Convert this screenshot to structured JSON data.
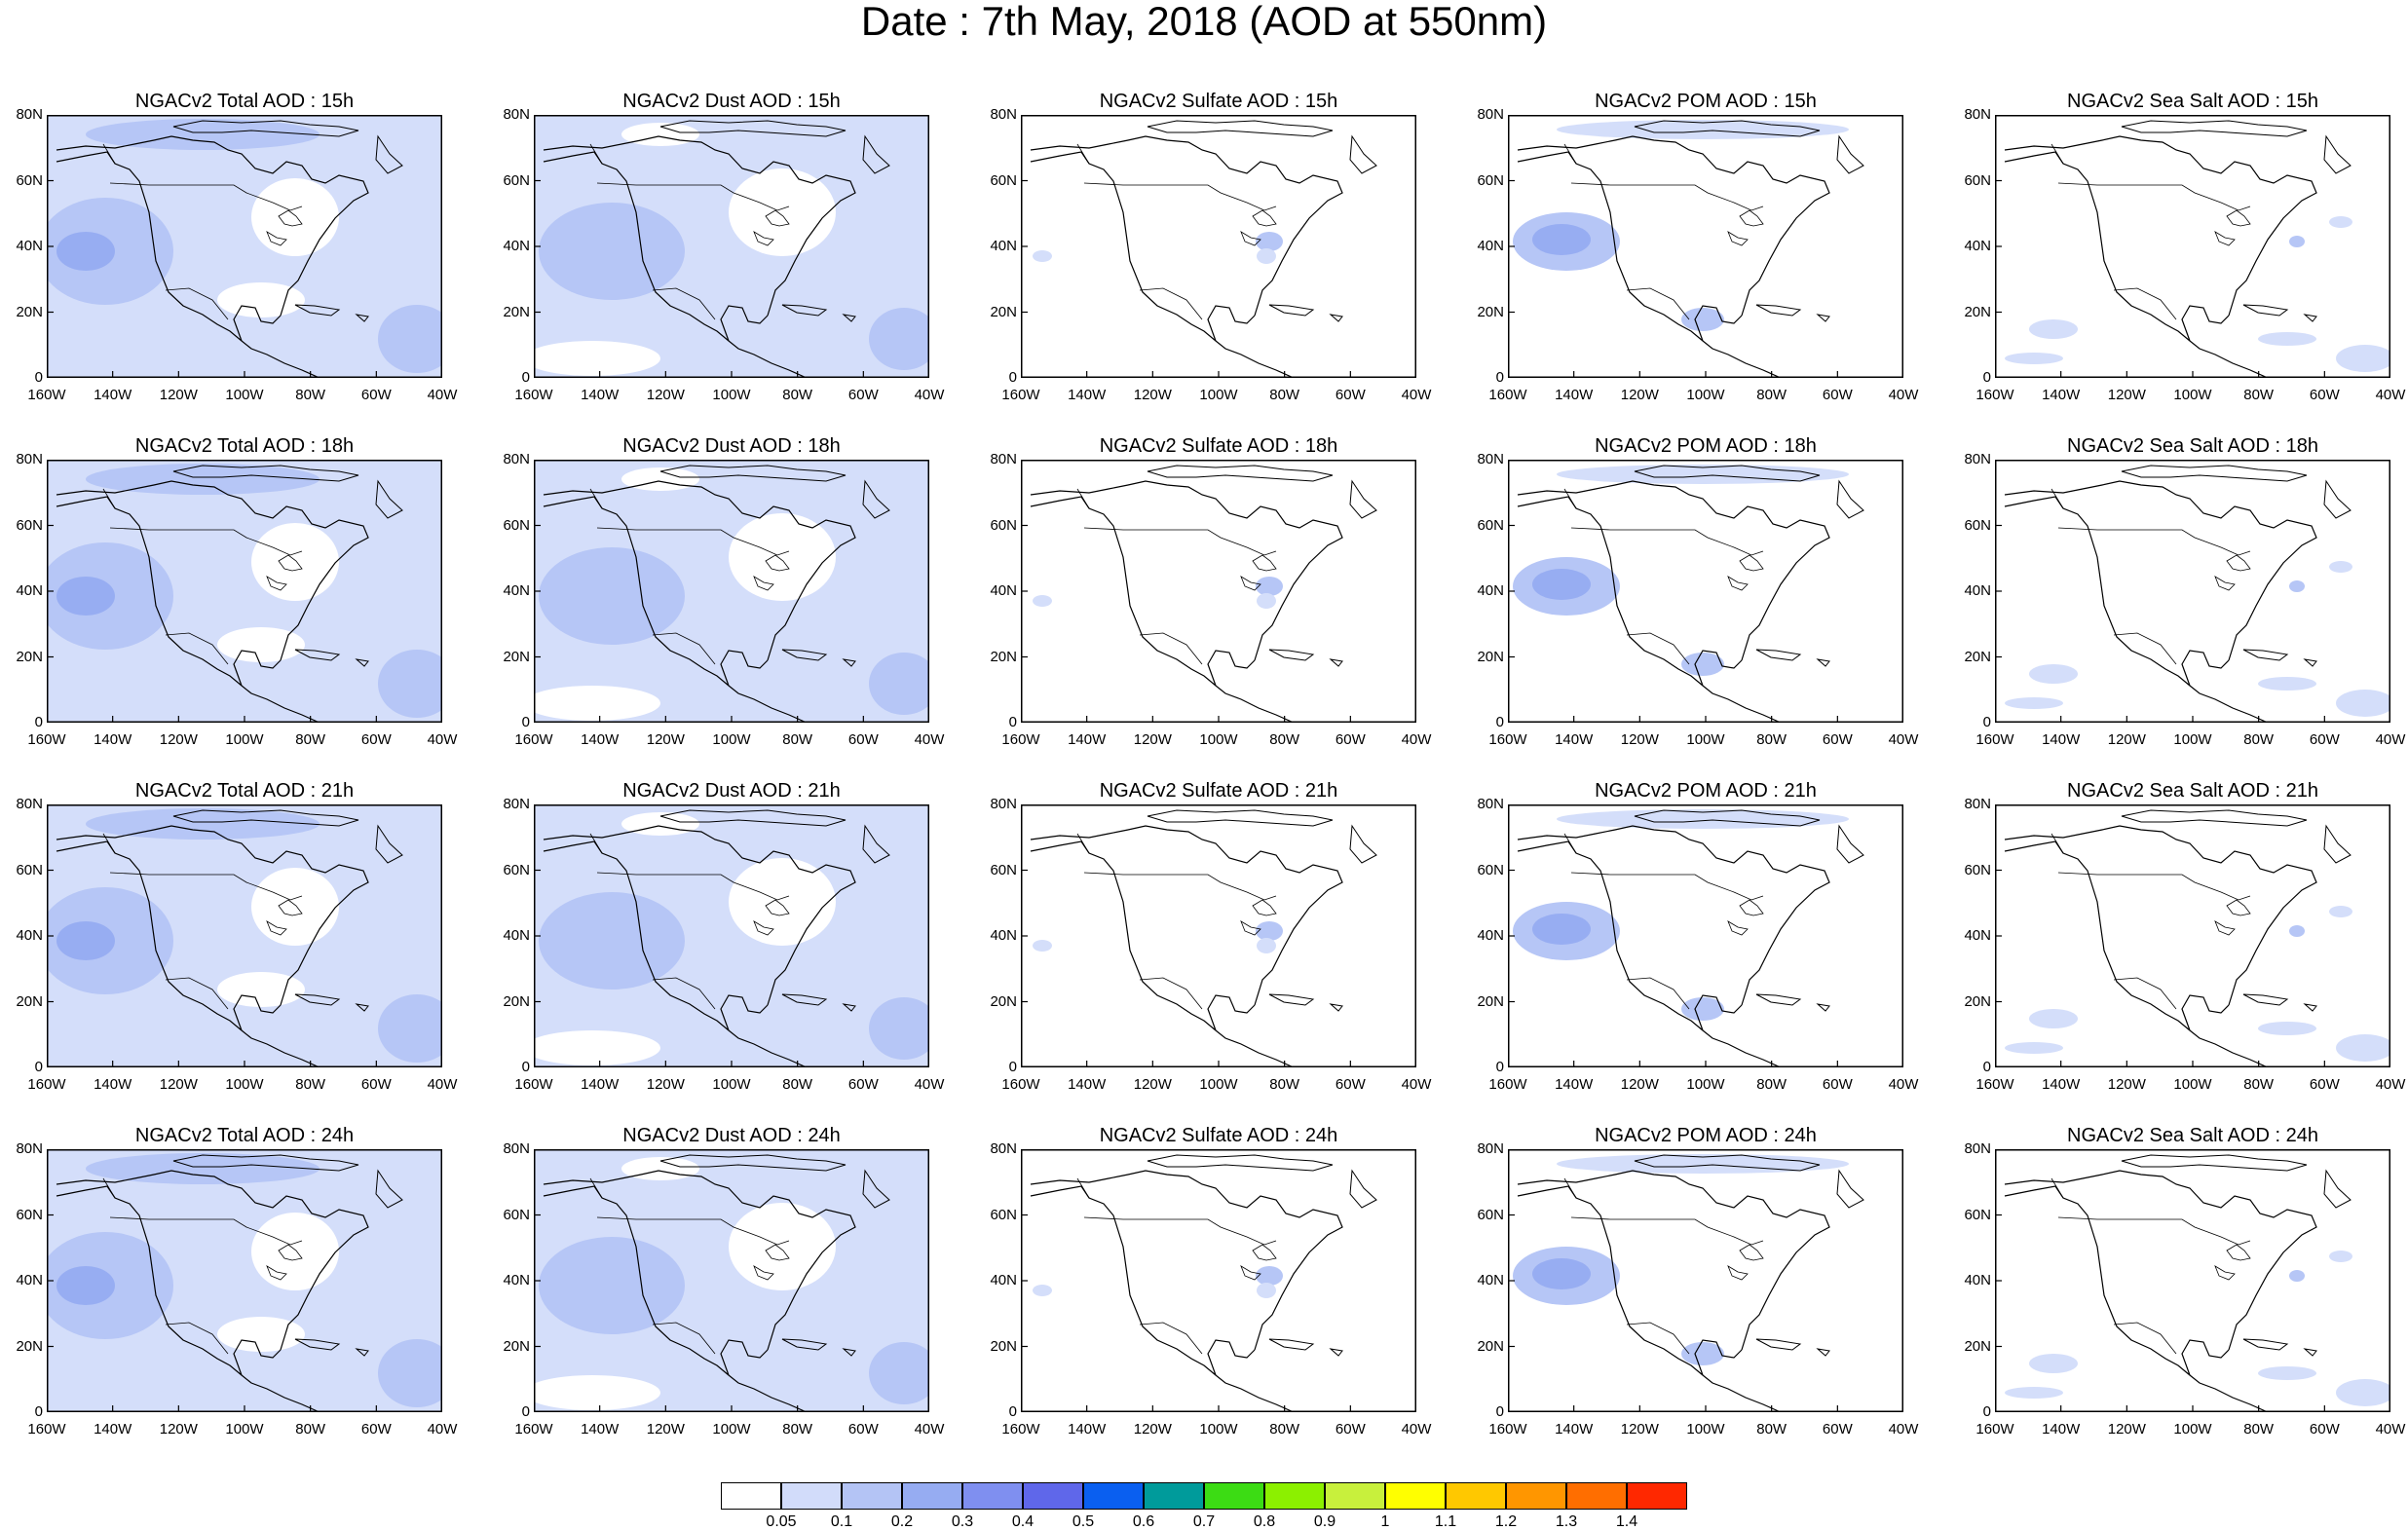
{
  "title": "Date : 7th May, 2018 (AOD at 550nm)",
  "axes": {
    "lat_labels": [
      "80N",
      "60N",
      "40N",
      "20N",
      "0"
    ],
    "lon_labels": [
      "160W",
      "140W",
      "120W",
      "100W",
      "80W",
      "60W",
      "40W"
    ]
  },
  "rows": [
    {
      "hour": "15h",
      "panels": [
        {
          "title": "NGACv2 Total AOD : 15h",
          "type": "total"
        },
        {
          "title": "NGACv2 Dust AOD : 15h",
          "type": "dust"
        },
        {
          "title": "NGACv2 Sulfate AOD : 15h",
          "type": "sulfate"
        },
        {
          "title": "NGACv2 POM AOD : 15h",
          "type": "pom"
        },
        {
          "title": "NGACv2 Sea Salt AOD : 15h",
          "type": "seasalt"
        }
      ]
    },
    {
      "hour": "18h",
      "panels": [
        {
          "title": "NGACv2 Total AOD : 18h",
          "type": "total"
        },
        {
          "title": "NGACv2 Dust AOD : 18h",
          "type": "dust"
        },
        {
          "title": "NGACv2 Sulfate AOD : 18h",
          "type": "sulfate"
        },
        {
          "title": "NGACv2 POM AOD : 18h",
          "type": "pom"
        },
        {
          "title": "NGACv2 Sea Salt AOD : 18h",
          "type": "seasalt"
        }
      ]
    },
    {
      "hour": "21h",
      "panels": [
        {
          "title": "NGACv2 Total AOD : 21h",
          "type": "total"
        },
        {
          "title": "NGACv2 Dust AOD : 21h",
          "type": "dust"
        },
        {
          "title": "NGACv2 Sulfate AOD : 21h",
          "type": "sulfate"
        },
        {
          "title": "NGACv2 POM AOD : 21h",
          "type": "pom"
        },
        {
          "title": "NGACv2 Sea Salt AOD : 21h",
          "type": "seasalt"
        }
      ]
    },
    {
      "hour": "24h",
      "panels": [
        {
          "title": "NGACv2 Total AOD : 24h",
          "type": "total"
        },
        {
          "title": "NGACv2 Dust AOD : 24h",
          "type": "dust"
        },
        {
          "title": "NGACv2 Sulfate AOD : 24h",
          "type": "sulfate"
        },
        {
          "title": "NGACv2 POM AOD : 24h",
          "type": "pom"
        },
        {
          "title": "NGACv2 Sea Salt  AOD : 24h",
          "type": "seasalt"
        }
      ]
    }
  ],
  "colorbar": {
    "labels": [
      "0.05",
      "0.1",
      "0.2",
      "0.3",
      "0.4",
      "0.5",
      "0.6",
      "0.7",
      "0.8",
      "0.9",
      "1",
      "1.1",
      "1.2",
      "1.3",
      "1.4"
    ],
    "colors": [
      "#ffffff",
      "#d2dcfa",
      "#b4c4f5",
      "#96acf2",
      "#7f8ff0",
      "#5f67ea",
      "#0a5ff0",
      "#009b9b",
      "#3cdc14",
      "#8cf000",
      "#c8f03c",
      "#ffff00",
      "#ffc800",
      "#ff9600",
      "#ff6e00",
      "#ff2800"
    ]
  }
}
